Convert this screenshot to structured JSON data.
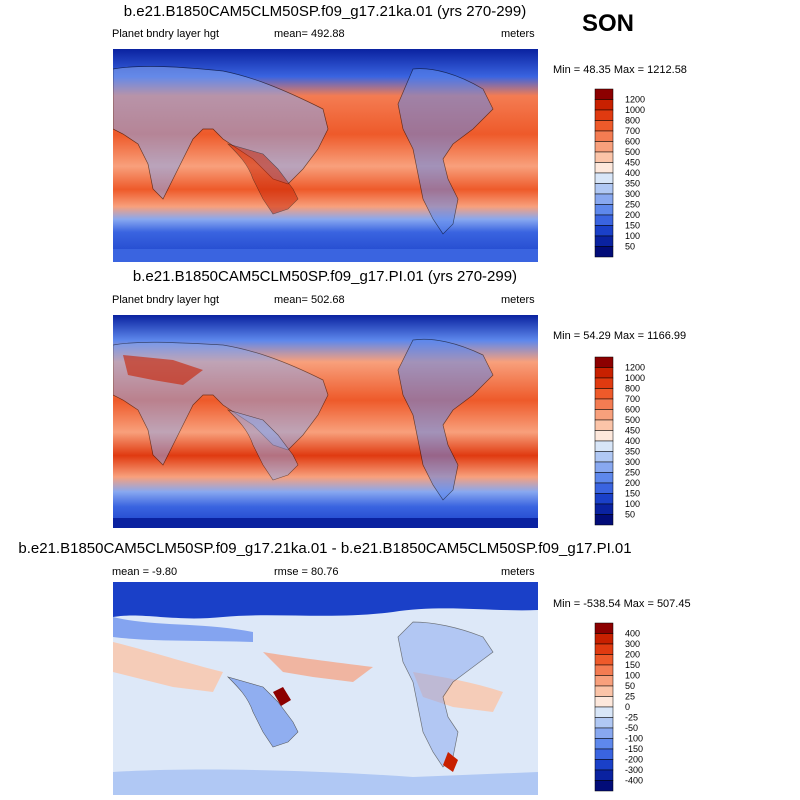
{
  "season": "SON",
  "panels": [
    {
      "title": "b.e21.B1850CAM5CLM50SP.f09_g17.21ka.01 (yrs 270-299)",
      "left_label": "Planet bndry layer hgt",
      "center_label": "mean= 492.88",
      "right_label": "meters",
      "minmax": "Min =  48.35 Max = 1212.58",
      "levels": [
        "1200",
        "1000",
        "800",
        "700",
        "600",
        "500",
        "450",
        "400",
        "350",
        "300",
        "250",
        "200",
        "150",
        "100",
        "50"
      ],
      "colors": [
        "#8c0000",
        "#c82000",
        "#e03a10",
        "#ee5a2a",
        "#f47c52",
        "#f8a07c",
        "#fbc4a8",
        "#fde8dc",
        "#d8e6f8",
        "#b0c8f4",
        "#88a8f0",
        "#5e88ec",
        "#3a64e0",
        "#1a40c8",
        "#0a22a0",
        "#020c78"
      ]
    },
    {
      "title": "b.e21.B1850CAM5CLM50SP.f09_g17.PI.01 (yrs 270-299)",
      "left_label": "Planet bndry layer hgt",
      "center_label": "mean= 502.68",
      "right_label": "meters",
      "minmax": "Min =  54.29 Max = 1166.99",
      "levels": [
        "1200",
        "1000",
        "800",
        "700",
        "600",
        "500",
        "450",
        "400",
        "350",
        "300",
        "250",
        "200",
        "150",
        "100",
        "50"
      ],
      "colors": [
        "#8c0000",
        "#c82000",
        "#e03a10",
        "#ee5a2a",
        "#f47c52",
        "#f8a07c",
        "#fbc4a8",
        "#fde8dc",
        "#d8e6f8",
        "#b0c8f4",
        "#88a8f0",
        "#5e88ec",
        "#3a64e0",
        "#1a40c8",
        "#0a22a0",
        "#020c78"
      ]
    },
    {
      "title": "b.e21.B1850CAM5CLM50SP.f09_g17.21ka.01 - b.e21.B1850CAM5CLM50SP.f09_g17.PI.01",
      "left_label": "mean =  -9.80",
      "center_label": "rmse =  80.76",
      "right_label": "meters",
      "minmax": "Min = -538.54 Max = 507.45",
      "levels": [
        "400",
        "300",
        "200",
        "150",
        "100",
        "50",
        "25",
        "0",
        "-25",
        "-50",
        "-100",
        "-150",
        "-200",
        "-300",
        "-400"
      ],
      "colors": [
        "#8c0000",
        "#c82000",
        "#e03a10",
        "#ee5a2a",
        "#f47c52",
        "#f8a07c",
        "#fbc4a8",
        "#fde8dc",
        "#d8e6f8",
        "#b0c8f4",
        "#88a8f0",
        "#5e88ec",
        "#3a64e0",
        "#1a40c8",
        "#0a22a0",
        "#020c78"
      ]
    }
  ]
}
